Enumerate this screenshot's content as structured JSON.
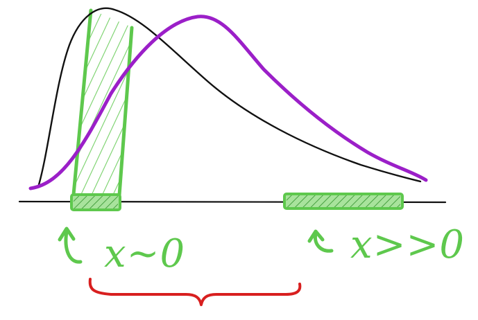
{
  "labels": {
    "near_zero": "x~0",
    "far_from_zero": "x>>0"
  },
  "colors": {
    "background": "#ffffff",
    "black_curve": "#111111",
    "purple_curve": "#9b1fc8",
    "green_marker": "#5ec84d",
    "red_brace": "#d81f1f",
    "axis": "#111111"
  }
}
